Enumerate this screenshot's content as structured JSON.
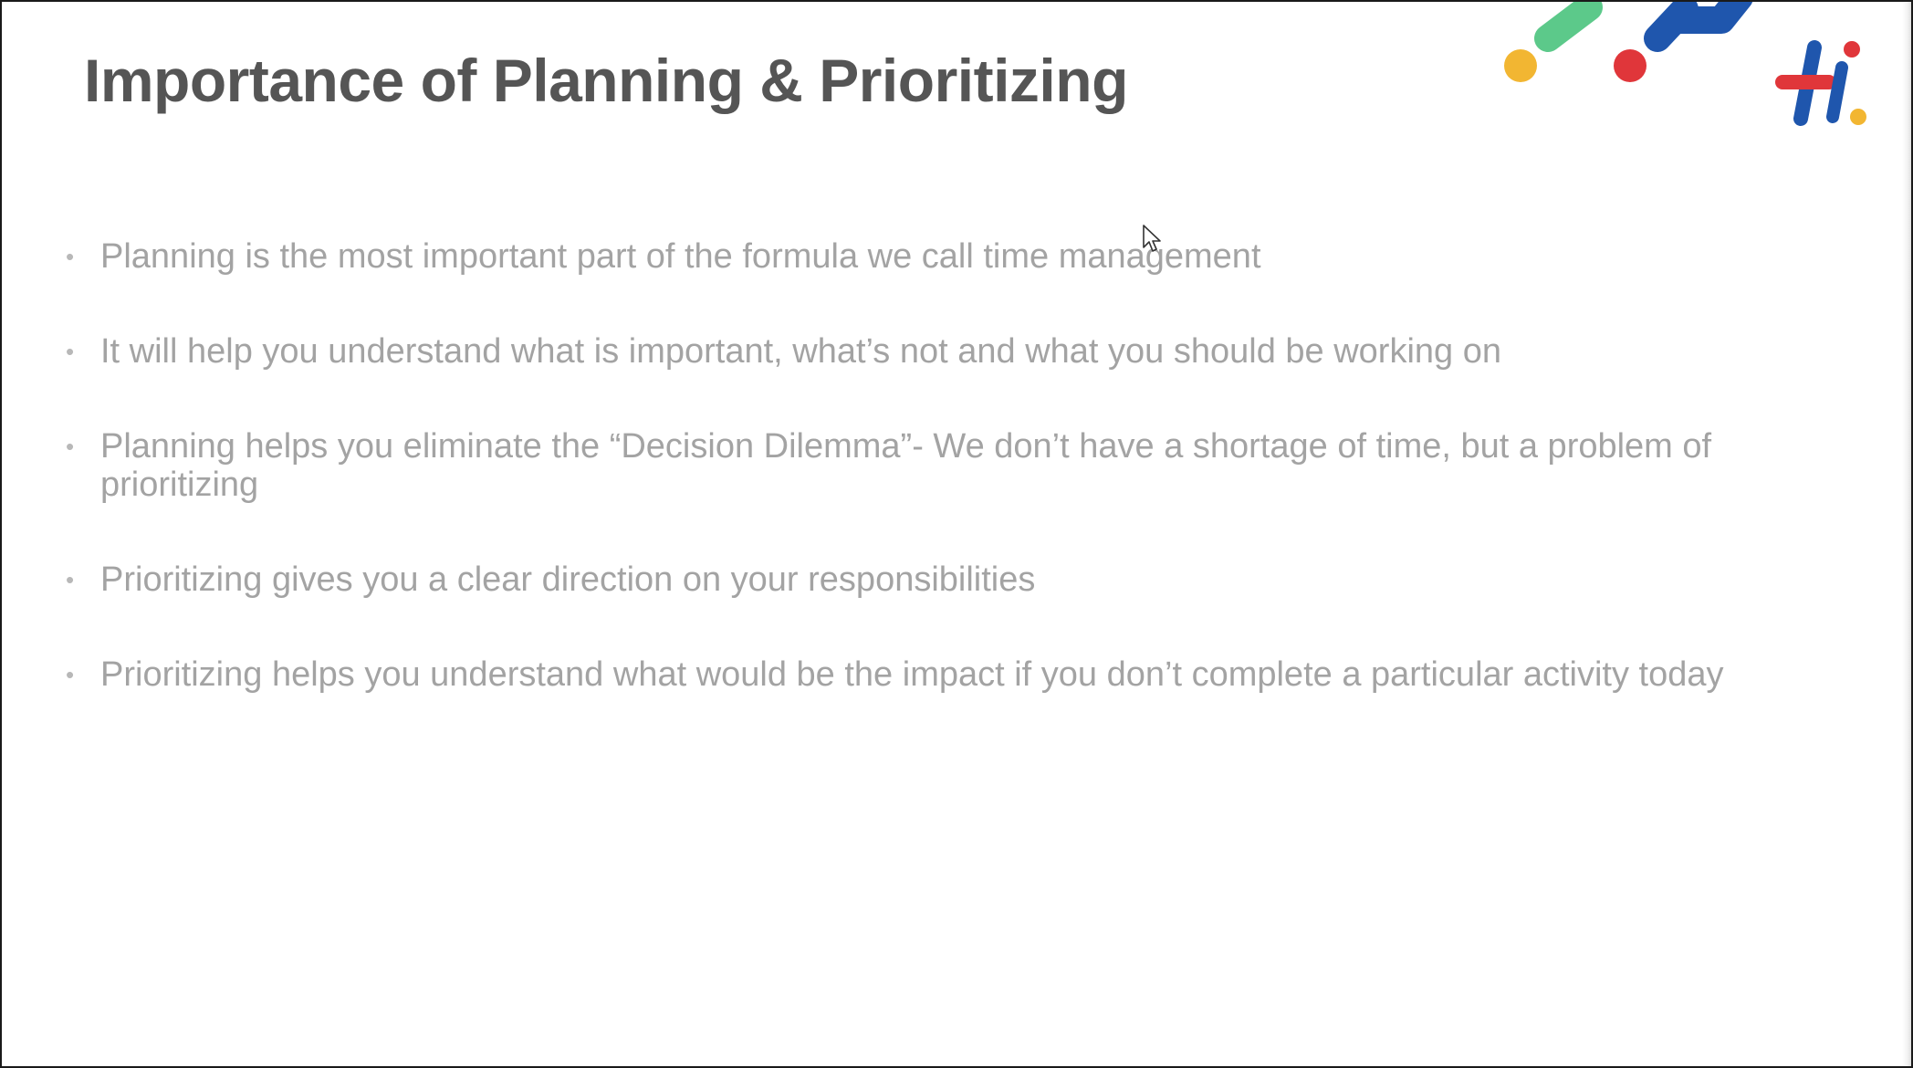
{
  "slide": {
    "title": "Importance of Planning & Prioritizing",
    "bullet_marker": "•",
    "bullets": [
      "Planning is the most important part of the formula we call time management",
      "It will help you understand what is important, what’s not and what you should be working on",
      "Planning helps you eliminate the “Decision Dilemma”- We don’t have a shortage of time, but a problem of prioritizing",
      "Prioritizing gives you a clear direction on your responsibilities",
      "Prioritizing helps you understand what would be the impact if you don’t complete a particular activity today"
    ]
  },
  "logo": {
    "name": "hi-logo",
    "colors": {
      "green": "#5cc98a",
      "blue": "#1f56ad",
      "red": "#e0363a",
      "yellow": "#f2b632"
    }
  },
  "icons": {
    "cursor": "mouse-pointer-icon"
  }
}
